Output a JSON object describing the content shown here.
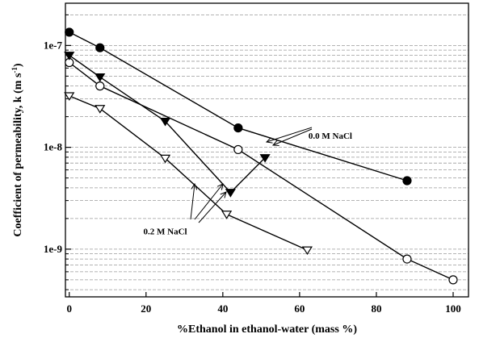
{
  "chart_data": {
    "type": "line",
    "title": "",
    "xlabel": "%Ethanol in ethanol-water (mass %)",
    "ylabel": "Coefficient of permeability, k (m s",
    "ylabel_superscript": "-1",
    "ylabel_close": ")",
    "x_scale": "linear",
    "y_scale": "log",
    "xlim": [
      -1,
      104
    ],
    "ylim": [
      3.4e-10,
      2.6e-07
    ],
    "x_ticks": [
      0,
      20,
      40,
      60,
      80,
      100
    ],
    "x_tick_labels": [
      "0",
      "20",
      "40",
      "60",
      "80",
      "100"
    ],
    "y_ticks": [
      1e-09,
      1e-08,
      1e-07
    ],
    "y_tick_labels": [
      "1e-9",
      "1e-8",
      "1e-7"
    ],
    "grid": true,
    "series": [
      {
        "marker": "filled-circle",
        "points": [
          [
            0,
            1.35e-07
          ],
          [
            8,
            9.5e-08
          ],
          [
            44,
            1.55e-08
          ],
          [
            88,
            4.7e-09
          ]
        ]
      },
      {
        "marker": "open-circle",
        "points": [
          [
            0,
            6.8e-08
          ],
          [
            8,
            4e-08
          ],
          [
            44,
            9.5e-09
          ],
          [
            88,
            8e-10
          ],
          [
            100,
            5e-10
          ]
        ]
      },
      {
        "marker": "filled-triangle-down",
        "points": [
          [
            0,
            8e-08
          ],
          [
            8,
            4.9e-08
          ],
          [
            25,
            1.8e-08
          ],
          [
            42,
            3.6e-09
          ],
          [
            51,
            7.9e-09
          ]
        ]
      },
      {
        "marker": "open-triangle-down",
        "points": [
          [
            0,
            3.2e-08
          ],
          [
            8,
            2.4e-08
          ],
          [
            25,
            7.8e-09
          ],
          [
            41,
            2.2e-09
          ],
          [
            62,
            9.8e-10
          ]
        ]
      }
    ],
    "annotations": [
      {
        "text": "0.0 M NaCl",
        "at": [
          68,
          1.3e-08
        ]
      },
      {
        "text": "0.2 M NaCl",
        "at": [
          25,
          1.5e-09
        ]
      }
    ]
  }
}
